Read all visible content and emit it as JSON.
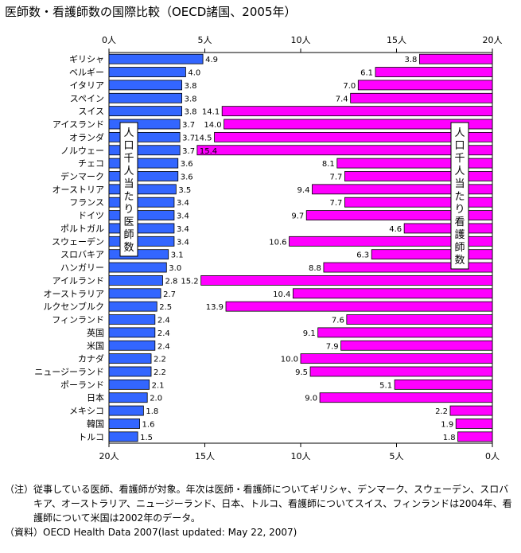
{
  "title": "医師数・看護師数の国際比較（OECD諸国、2005年）",
  "notes": {
    "note_label": "（注）",
    "note_text": "従事している医師、看護師が対象。年次は医師・看護師についてギリシャ、デンマーク、スウェーデン、スロバキア、オーストラリア、ニュージーランド、日本、トルコ、看護師についてスイス、フィンランドは2004年、看護師について米国は2002年のデータ。",
    "source_label": "（資料）",
    "source_text": "OECD Health Data 2007(last updated: May 22, 2007)"
  },
  "chart_data": {
    "type": "bar",
    "title": "医師数・看護師数の国際比較（OECD諸国、2005年）",
    "categories": [
      "ギリシャ",
      "ベルギー",
      "イタリア",
      "スペイン",
      "スイス",
      "アイスランド",
      "オランダ",
      "ノルウェー",
      "チェコ",
      "デンマーク",
      "オーストリア",
      "フランス",
      "ドイツ",
      "ポルトガル",
      "スウェーデン",
      "スロバキア",
      "ハンガリー",
      "アイルランド",
      "オーストラリア",
      "ルクセンブルク",
      "フィンランド",
      "英国",
      "米国",
      "カナダ",
      "ニュージーランド",
      "ポーランド",
      "日本",
      "メキシコ",
      "韓国",
      "トルコ"
    ],
    "series": [
      {
        "name": "人口千人当たり医師数",
        "color": "#3366ff",
        "values": [
          4.9,
          4.0,
          3.8,
          3.8,
          3.8,
          3.7,
          3.7,
          3.7,
          3.6,
          3.6,
          3.5,
          3.4,
          3.4,
          3.4,
          3.4,
          3.1,
          3.0,
          2.8,
          2.7,
          2.5,
          2.4,
          2.4,
          2.4,
          2.2,
          2.2,
          2.1,
          2.0,
          1.8,
          1.6,
          1.5
        ],
        "axis": "top",
        "xlim": [
          0,
          20
        ],
        "ticks": [
          "0人",
          "5人",
          "10人",
          "15人",
          "20人"
        ]
      },
      {
        "name": "人口千人当たり看護師数",
        "color": "#ff00ff",
        "values": [
          3.8,
          6.1,
          7.0,
          7.4,
          14.1,
          14.0,
          14.5,
          15.4,
          8.1,
          7.7,
          9.4,
          7.7,
          9.7,
          4.6,
          10.6,
          6.3,
          8.8,
          15.2,
          10.4,
          13.9,
          7.6,
          9.1,
          7.9,
          10.0,
          9.5,
          5.1,
          9.0,
          2.2,
          1.9,
          1.8
        ],
        "axis": "bottom",
        "xlim": [
          0,
          20
        ],
        "ticks": [
          "20人",
          "15人",
          "10人",
          "5人",
          "0人"
        ]
      }
    ]
  }
}
